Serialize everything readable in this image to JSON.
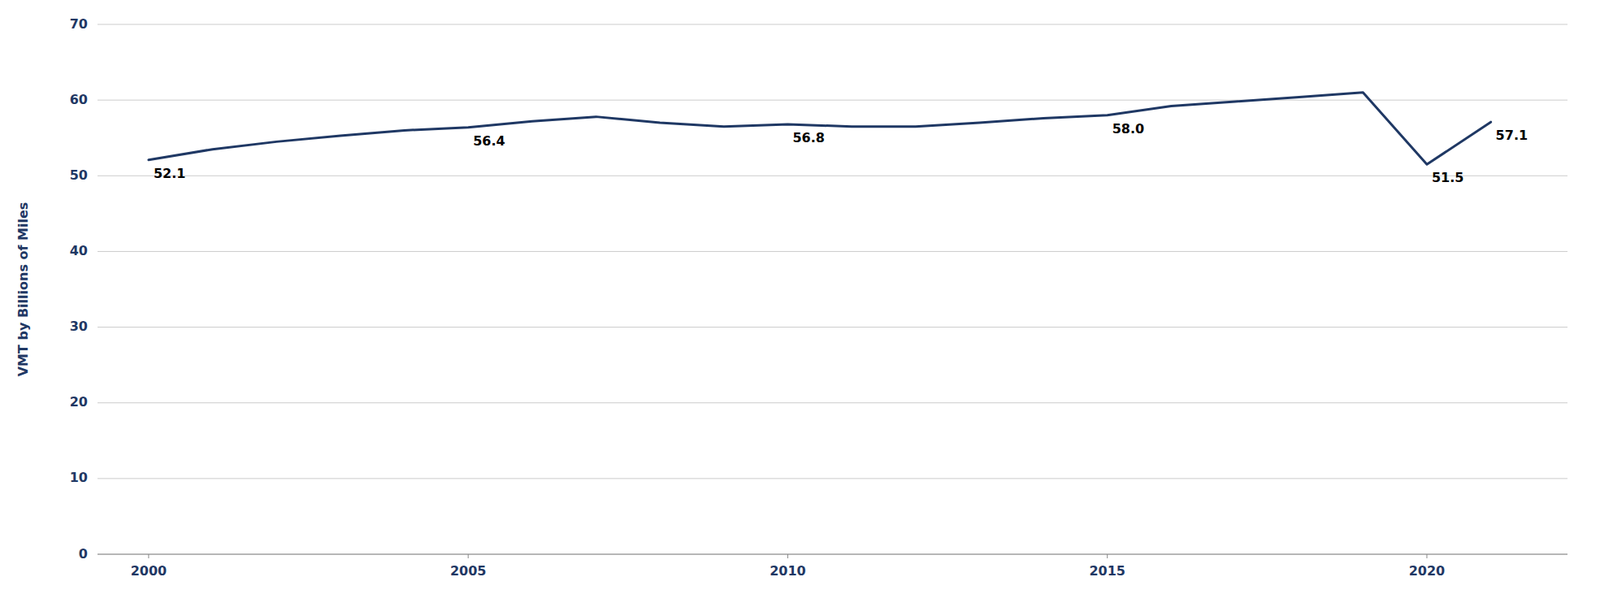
{
  "chart_data": {
    "type": "line",
    "y_label": "VMT by Billions of Miles",
    "x": [
      2000,
      2001,
      2002,
      2003,
      2004,
      2005,
      2006,
      2007,
      2008,
      2009,
      2010,
      2011,
      2012,
      2013,
      2014,
      2015,
      2016,
      2017,
      2018,
      2019,
      2020,
      2021
    ],
    "values": [
      52.1,
      53.5,
      54.5,
      55.3,
      56.0,
      56.4,
      57.2,
      57.8,
      57.0,
      56.5,
      56.8,
      56.5,
      56.5,
      57.0,
      57.6,
      58.0,
      59.2,
      59.8,
      60.4,
      61.0,
      51.5,
      57.1
    ],
    "color": "#1F3864",
    "annotations": [
      {
        "x": 2000,
        "y": 52.1,
        "text": "52.1"
      },
      {
        "x": 2005,
        "y": 56.4,
        "text": "56.4"
      },
      {
        "x": 2010,
        "y": 56.8,
        "text": "56.8"
      },
      {
        "x": 2015,
        "y": 58.0,
        "text": "58.0"
      },
      {
        "x": 2020,
        "y": 51.5,
        "text": "51.5"
      },
      {
        "x": 2021,
        "y": 57.1,
        "text": "57.1"
      }
    ],
    "xlim": [
      1999.2,
      2022.2
    ],
    "xticks": [
      2000,
      2005,
      2010,
      2015,
      2020
    ],
    "ylim": [
      0,
      70
    ],
    "yticks": [
      0,
      10,
      20,
      30,
      40,
      50,
      60,
      70
    ],
    "grid": true
  }
}
